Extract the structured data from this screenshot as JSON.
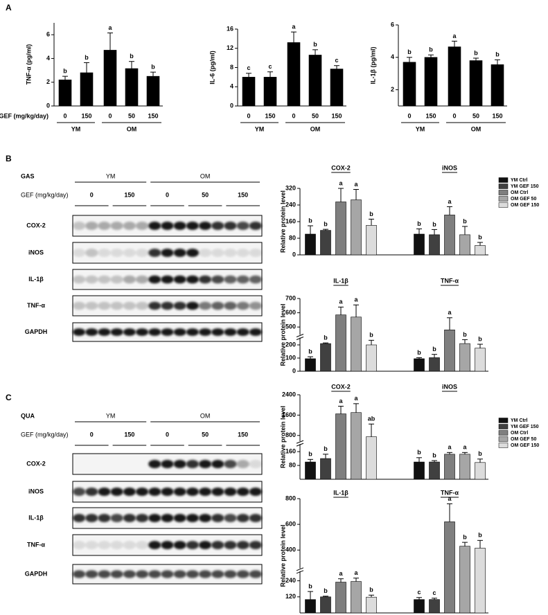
{
  "panels": [
    "A",
    "B",
    "C"
  ],
  "chart_data": [
    {
      "type": "bar",
      "y_label": "TNF-α (pg/ml)",
      "x_label": "GEF (mg/kg/day)",
      "color": "#000000",
      "ylim": [
        0,
        7
      ],
      "yticks": [
        0,
        2,
        4,
        6
      ],
      "groups": [
        {
          "name": "YM",
          "categories": [
            "0",
            "150"
          ],
          "values": [
            2.2,
            2.8
          ],
          "errors": [
            0.3,
            0.85
          ],
          "annotations": [
            "b",
            "b"
          ]
        },
        {
          "name": "OM",
          "categories": [
            "0",
            "50",
            "150"
          ],
          "values": [
            4.7,
            3.15,
            2.5
          ],
          "errors": [
            1.45,
            0.6,
            0.35
          ],
          "annotations": [
            "a",
            "b",
            "b"
          ]
        }
      ]
    },
    {
      "type": "bar",
      "y_label": "IL-6 (pg/ml)",
      "color": "#000000",
      "ylim": [
        0,
        16
      ],
      "yticks": [
        0,
        4,
        8,
        12,
        16
      ],
      "groups": [
        {
          "name": "YM",
          "categories": [
            "0",
            "150"
          ],
          "values": [
            6.0,
            6.0
          ],
          "errors": [
            0.8,
            1.1
          ],
          "annotations": [
            "c",
            "c"
          ]
        },
        {
          "name": "OM",
          "categories": [
            "0",
            "50",
            "150"
          ],
          "values": [
            13.2,
            10.6,
            7.7
          ],
          "errors": [
            2.2,
            1.1,
            0.7
          ],
          "annotations": [
            "a",
            "b",
            "c"
          ]
        }
      ]
    },
    {
      "type": "bar",
      "y_label": "IL-1β (pg/ml)",
      "color": "#000000",
      "ylim": [
        1,
        6
      ],
      "yticks": [
        2,
        4,
        6
      ],
      "groups": [
        {
          "name": "YM",
          "categories": [
            "0",
            "150"
          ],
          "values": [
            3.7,
            4.0
          ],
          "errors": [
            0.3,
            0.15
          ],
          "annotations": [
            "b",
            "b"
          ]
        },
        {
          "name": "OM",
          "categories": [
            "0",
            "50",
            "150"
          ],
          "values": [
            4.65,
            3.8,
            3.55
          ],
          "errors": [
            0.35,
            0.15,
            0.3
          ],
          "annotations": [
            "a",
            "b",
            "b"
          ]
        }
      ]
    },
    {
      "type": "grouped-bar",
      "y_label": "Relative protein level",
      "legend": [
        "YM Ctrl",
        "YM GEF 150",
        "OM Ctrl",
        "OM GEF 50",
        "OM GEF 150"
      ],
      "colors": [
        "#111111",
        "#404040",
        "#7f7f7f",
        "#a6a6a6",
        "#dcdcdc"
      ],
      "ylim": [
        0,
        320
      ],
      "yticks": [
        0,
        80,
        160,
        240,
        320
      ],
      "groups": [
        {
          "name": "COX-2",
          "values": [
            100,
            118,
            255,
            265,
            142
          ],
          "errors": [
            40,
            5,
            65,
            50,
            30
          ],
          "annotations": [
            "b",
            "b",
            "a",
            "a",
            "b"
          ]
        },
        {
          "name": "iNOS",
          "values": [
            100,
            97,
            192,
            97,
            45
          ],
          "errors": [
            25,
            25,
            40,
            40,
            15
          ],
          "annotations": [
            "b",
            "b",
            "a",
            "b",
            "b"
          ]
        }
      ]
    },
    {
      "type": "grouped-bar",
      "y_label": "Relative protein level",
      "colors": [
        "#111111",
        "#404040",
        "#7f7f7f",
        "#a6a6a6",
        "#dcdcdc"
      ],
      "ylim": [
        0,
        700
      ],
      "ybreak": [
        250,
        450
      ],
      "yticks": [
        0,
        100,
        200,
        500,
        600,
        700
      ],
      "groups": [
        {
          "name": "IL-1β",
          "values": [
            95,
            210,
            585,
            570,
            200
          ],
          "errors": [
            15,
            5,
            55,
            85,
            35
          ],
          "annotations": [
            "b",
            "b",
            "a",
            "a",
            "b"
          ]
        },
        {
          "name": "TNF-α",
          "values": [
            95,
            103,
            480,
            210,
            175
          ],
          "errors": [
            8,
            25,
            85,
            30,
            30
          ],
          "annotations": [
            "b",
            "b",
            "a",
            "b",
            "b"
          ]
        }
      ]
    },
    {
      "type": "grouped-bar",
      "y_label": "Relative protein level",
      "legend": [
        "YM Ctrl",
        "YM GEF 150",
        "OM Ctrl",
        "OM GEF 50",
        "OM GEF 150"
      ],
      "colors": [
        "#111111",
        "#404040",
        "#7f7f7f",
        "#a6a6a6",
        "#dcdcdc"
      ],
      "ylim": [
        0,
        2400
      ],
      "ybreak": [
        200,
        600
      ],
      "yticks": [
        80,
        160,
        800,
        1600,
        2400
      ],
      "groups": [
        {
          "name": "COX-2",
          "values": [
            100,
            120,
            1650,
            1700,
            750
          ],
          "errors": [
            15,
            25,
            300,
            350,
            500
          ],
          "annotations": [
            "b",
            "b",
            "a",
            "a",
            "ab"
          ]
        },
        {
          "name": "iNOS",
          "values": [
            100,
            100,
            145,
            145,
            97
          ],
          "errors": [
            25,
            8,
            10,
            10,
            20
          ],
          "annotations": [
            "b",
            "b",
            "a",
            "a",
            "b"
          ]
        }
      ]
    },
    {
      "type": "grouped-bar",
      "y_label": "Relative protein level",
      "colors": [
        "#111111",
        "#404040",
        "#7f7f7f",
        "#a6a6a6",
        "#dcdcdc"
      ],
      "ylim": [
        0,
        800
      ],
      "ybreak": [
        270,
        300
      ],
      "yticks": [
        120,
        240,
        400,
        600,
        800
      ],
      "groups": [
        {
          "name": "IL-1β",
          "values": [
            100,
            120,
            230,
            235,
            118
          ],
          "errors": [
            60,
            5,
            25,
            25,
            15
          ],
          "annotations": [
            "b",
            "b",
            "a",
            "a",
            "b"
          ]
        },
        {
          "name": "TNF-α",
          "values": [
            100,
            100,
            620,
            430,
            415
          ],
          "errors": [
            15,
            10,
            140,
            30,
            60
          ],
          "annotations": [
            "c",
            "c",
            "a",
            "b",
            "b"
          ]
        }
      ]
    }
  ],
  "blots": [
    {
      "stain": "GAS",
      "dose_label": "GEF (mg/kg/day)",
      "groups": [
        {
          "name": "YM",
          "doses": [
            "0",
            "150"
          ]
        },
        {
          "name": "OM",
          "doses": [
            "0",
            "50",
            "150"
          ]
        }
      ],
      "rows": [
        "COX-2",
        "iNOS",
        "IL-1β",
        "TNF-α",
        "GAPDH"
      ]
    },
    {
      "stain": "QUA",
      "dose_label": "GEF (mg/kg/day)",
      "groups": [
        {
          "name": "YM",
          "doses": [
            "0",
            "150"
          ]
        },
        {
          "name": "OM",
          "doses": [
            "0",
            "50",
            "150"
          ]
        }
      ],
      "rows": [
        "COX-2",
        "iNOS",
        "IL-1β",
        "TNF-α",
        "GAPDH"
      ]
    }
  ]
}
